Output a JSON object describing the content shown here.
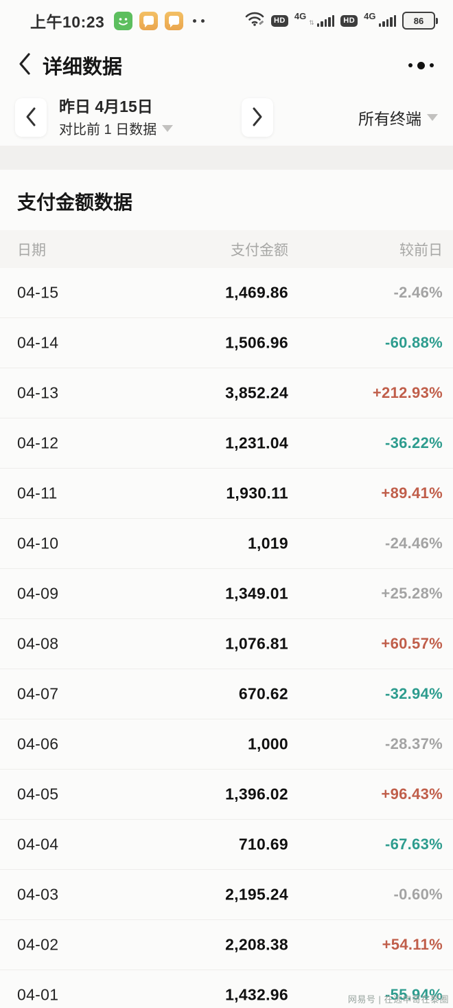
{
  "status_bar": {
    "time": "上午10:23",
    "battery": "86",
    "hd_badge": "HD",
    "network_label": "4G"
  },
  "nav": {
    "title": "详细数据"
  },
  "date_nav": {
    "date_label": "昨日 4月15日",
    "compare_label": "对比前 1 日数据",
    "terminal_filter": "所有终端"
  },
  "section": {
    "title": "支付金额数据"
  },
  "table": {
    "headers": [
      "日期",
      "支付金额",
      "较前日"
    ],
    "rows": [
      {
        "date": "04-15",
        "amount": "1,469.86",
        "change": "-2.46%",
        "trend": "neutral"
      },
      {
        "date": "04-14",
        "amount": "1,506.96",
        "change": "-60.88%",
        "trend": "down"
      },
      {
        "date": "04-13",
        "amount": "3,852.24",
        "change": "+212.93%",
        "trend": "up"
      },
      {
        "date": "04-12",
        "amount": "1,231.04",
        "change": "-36.22%",
        "trend": "down"
      },
      {
        "date": "04-11",
        "amount": "1,930.11",
        "change": "+89.41%",
        "trend": "up"
      },
      {
        "date": "04-10",
        "amount": "1,019",
        "change": "-24.46%",
        "trend": "neutral"
      },
      {
        "date": "04-09",
        "amount": "1,349.01",
        "change": "+25.28%",
        "trend": "neutral"
      },
      {
        "date": "04-08",
        "amount": "1,076.81",
        "change": "+60.57%",
        "trend": "up"
      },
      {
        "date": "04-07",
        "amount": "670.62",
        "change": "-32.94%",
        "trend": "down"
      },
      {
        "date": "04-06",
        "amount": "1,000",
        "change": "-28.37%",
        "trend": "neutral"
      },
      {
        "date": "04-05",
        "amount": "1,396.02",
        "change": "+96.43%",
        "trend": "up"
      },
      {
        "date": "04-04",
        "amount": "710.69",
        "change": "-67.63%",
        "trend": "down"
      },
      {
        "date": "04-03",
        "amount": "2,195.24",
        "change": "-0.60%",
        "trend": "neutral"
      },
      {
        "date": "04-02",
        "amount": "2,208.38",
        "change": "+54.11%",
        "trend": "up"
      },
      {
        "date": "04-01",
        "amount": "1,432.96",
        "change": "-55.94%",
        "trend": "down"
      }
    ]
  },
  "colors": {
    "up": "#c05e4a",
    "down": "#2d9c8e",
    "neutral": "#a3a3a3"
  },
  "watermark": "网易号 | 在逃申哥在黎圈"
}
